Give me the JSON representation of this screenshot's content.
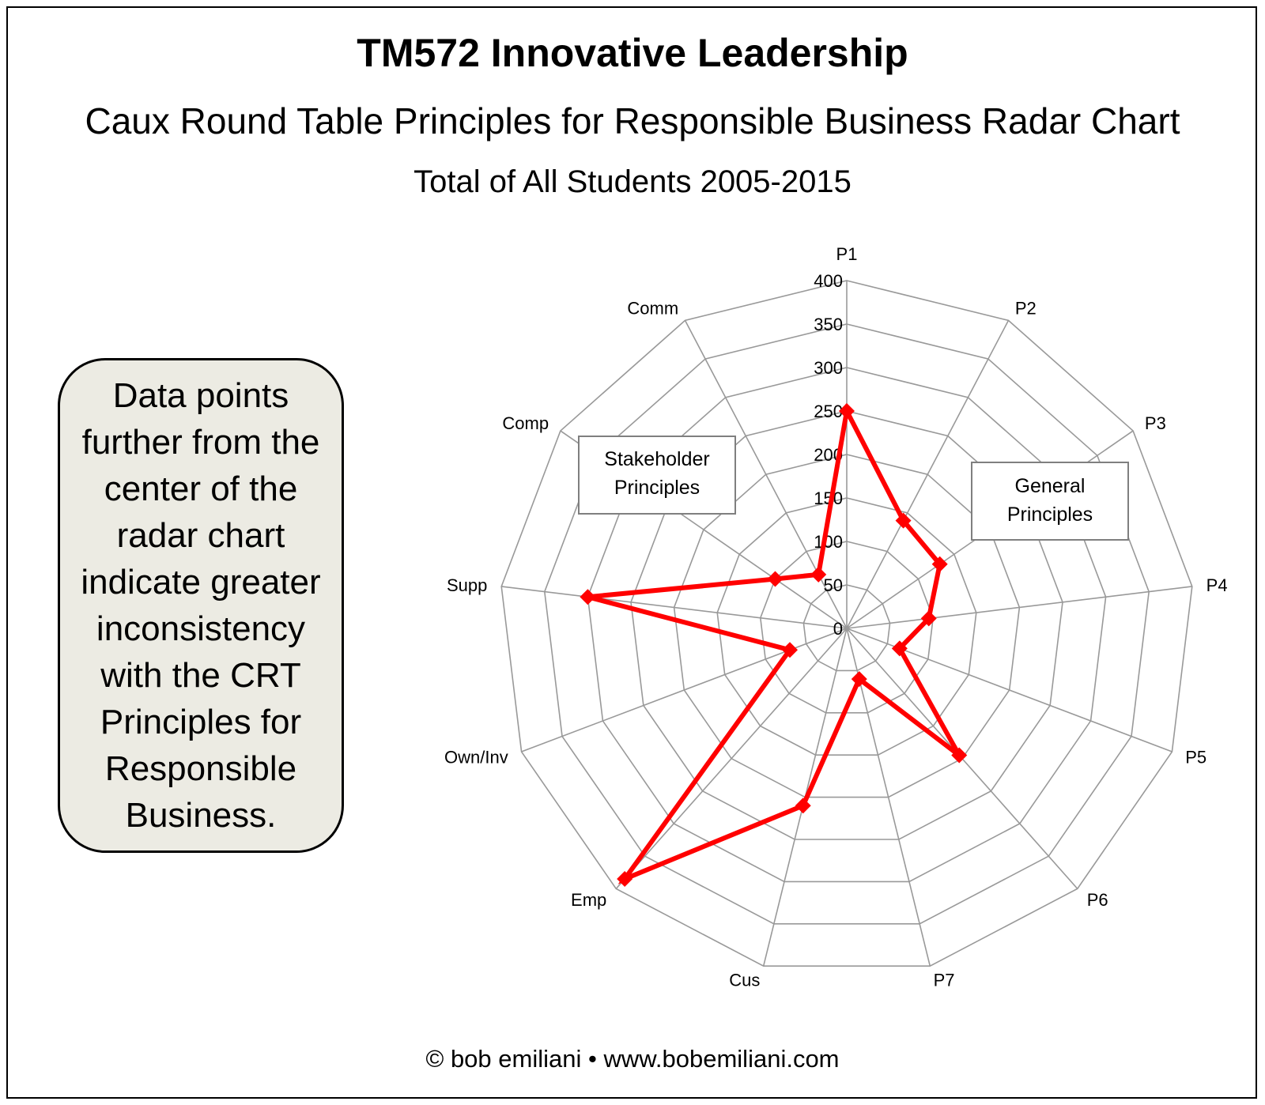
{
  "header": {
    "title": "TM572 Innovative Leadership",
    "subtitle": "Caux Round Table Principles for Responsible Business Radar Chart",
    "subtitle2": "Total of All Students 2005-2015"
  },
  "note": {
    "text": "Data points further from the center of the radar chart indicate greater inconsistency with the CRT Principles for Responsible Business."
  },
  "footer": {
    "text": "© bob emiliani • www.bobemiliani.com"
  },
  "chart_data": {
    "type": "radar",
    "title": "Caux Round Table Principles for Responsible Business Radar Chart",
    "categories": [
      "P1",
      "P2",
      "P3",
      "P4",
      "P5",
      "P6",
      "P7",
      "Cus",
      "Emp",
      "Own/Inv",
      "Supp",
      "Comp",
      "Comm"
    ],
    "series": [
      {
        "name": "Total of All Students 2005-2015",
        "values": [
          250,
          140,
          130,
          95,
          65,
          195,
          60,
          210,
          385,
          70,
          300,
          100,
          70
        ],
        "color": "#ff0000"
      }
    ],
    "rlim": [
      0,
      400
    ],
    "ticks": [
      0,
      50,
      100,
      150,
      200,
      250,
      300,
      350,
      400
    ],
    "grid": true,
    "annotations": [
      {
        "line1": "Stakeholder",
        "line2": "Principles"
      },
      {
        "line1": "General",
        "line2": "Principles"
      }
    ]
  },
  "colors": {
    "series": "#ff0000",
    "grid": "#999999",
    "note_bg": "#ecebe3"
  }
}
